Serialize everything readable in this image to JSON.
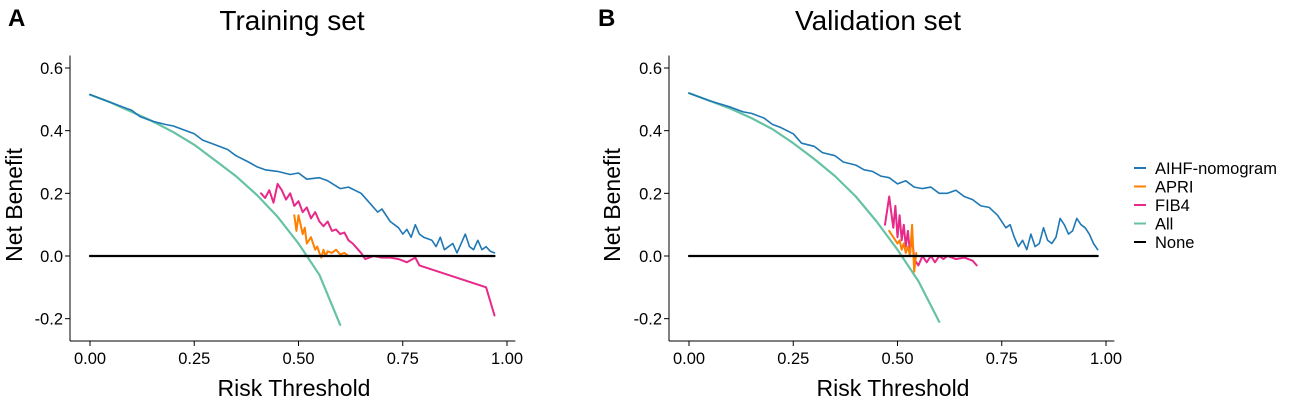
{
  "chart_data": [
    {
      "type": "line",
      "panel_letter": "A",
      "title": "Training set",
      "xlabel": "Risk Threshold",
      "ylabel": "Net Benefit",
      "xlim": [
        -0.04,
        1.02
      ],
      "ylim": [
        -0.26,
        0.64
      ],
      "xticks": [
        0,
        0.25,
        0.5,
        0.75,
        1.0
      ],
      "xtick_labels": [
        "0.00",
        "0.25",
        "0.50",
        "0.75",
        "1.00"
      ],
      "yticks": [
        -0.2,
        0,
        0.2,
        0.4,
        0.6
      ],
      "ytick_labels": [
        "-0.2",
        "0.0",
        "0.2",
        "0.4",
        "0.6"
      ],
      "grid": false,
      "series": [
        {
          "name": "All",
          "color": "#66C2A5",
          "width": 2.2,
          "points": [
            [
              0,
              0.515
            ],
            [
              0.05,
              0.49
            ],
            [
              0.1,
              0.46
            ],
            [
              0.15,
              0.43
            ],
            [
              0.2,
              0.395
            ],
            [
              0.25,
              0.355
            ],
            [
              0.3,
              0.305
            ],
            [
              0.35,
              0.255
            ],
            [
              0.4,
              0.195
            ],
            [
              0.45,
              0.125
            ],
            [
              0.5,
              0.04
            ],
            [
              0.55,
              -0.06
            ],
            [
              0.6,
              -0.22
            ]
          ]
        },
        {
          "name": "AIHF-nomogram",
          "color": "#1F78B4",
          "width": 1.6,
          "points": [
            [
              0,
              0.515
            ],
            [
              0.05,
              0.49
            ],
            [
              0.1,
              0.465
            ],
            [
              0.12,
              0.445
            ],
            [
              0.15,
              0.43
            ],
            [
              0.18,
              0.42
            ],
            [
              0.2,
              0.415
            ],
            [
              0.22,
              0.405
            ],
            [
              0.25,
              0.39
            ],
            [
              0.27,
              0.37
            ],
            [
              0.3,
              0.355
            ],
            [
              0.33,
              0.34
            ],
            [
              0.35,
              0.32
            ],
            [
              0.38,
              0.3
            ],
            [
              0.4,
              0.285
            ],
            [
              0.42,
              0.275
            ],
            [
              0.45,
              0.27
            ],
            [
              0.48,
              0.26
            ],
            [
              0.5,
              0.265
            ],
            [
              0.52,
              0.245
            ],
            [
              0.55,
              0.25
            ],
            [
              0.57,
              0.24
            ],
            [
              0.6,
              0.215
            ],
            [
              0.62,
              0.22
            ],
            [
              0.65,
              0.2
            ],
            [
              0.67,
              0.17
            ],
            [
              0.69,
              0.14
            ],
            [
              0.7,
              0.15
            ],
            [
              0.72,
              0.11
            ],
            [
              0.74,
              0.09
            ],
            [
              0.75,
              0.07
            ],
            [
              0.76,
              0.085
            ],
            [
              0.77,
              0.06
            ],
            [
              0.78,
              0.1
            ],
            [
              0.79,
              0.07
            ],
            [
              0.8,
              0.06
            ],
            [
              0.82,
              0.05
            ],
            [
              0.83,
              0.03
            ],
            [
              0.84,
              0.06
            ],
            [
              0.85,
              0.02
            ],
            [
              0.87,
              0.04
            ],
            [
              0.88,
              0.01
            ],
            [
              0.9,
              0.07
            ],
            [
              0.91,
              0.03
            ],
            [
              0.92,
              0.02
            ],
            [
              0.93,
              0.05
            ],
            [
              0.94,
              0.02
            ],
            [
              0.95,
              0.03
            ],
            [
              0.96,
              0.015
            ],
            [
              0.97,
              0.01
            ]
          ]
        },
        {
          "name": "FIB4",
          "color": "#E7298A",
          "width": 2.0,
          "points": [
            [
              0.41,
              0.2
            ],
            [
              0.42,
              0.185
            ],
            [
              0.43,
              0.21
            ],
            [
              0.44,
              0.17
            ],
            [
              0.45,
              0.23
            ],
            [
              0.46,
              0.21
            ],
            [
              0.47,
              0.18
            ],
            [
              0.48,
              0.2
            ],
            [
              0.49,
              0.16
            ],
            [
              0.5,
              0.175
            ],
            [
              0.51,
              0.14
            ],
            [
              0.52,
              0.155
            ],
            [
              0.53,
              0.12
            ],
            [
              0.54,
              0.14
            ],
            [
              0.55,
              0.11
            ],
            [
              0.56,
              0.095
            ],
            [
              0.57,
              0.11
            ],
            [
              0.58,
              0.08
            ],
            [
              0.59,
              0.085
            ],
            [
              0.6,
              0.07
            ],
            [
              0.61,
              0.075
            ],
            [
              0.62,
              0.05
            ],
            [
              0.63,
              0.04
            ],
            [
              0.64,
              0.025
            ],
            [
              0.65,
              0.01
            ],
            [
              0.66,
              -0.01
            ],
            [
              0.68,
              0.0
            ],
            [
              0.7,
              -0.005
            ],
            [
              0.72,
              -0.005
            ],
            [
              0.74,
              -0.01
            ],
            [
              0.76,
              -0.02
            ],
            [
              0.78,
              -0.005
            ],
            [
              0.79,
              -0.03
            ],
            [
              0.95,
              -0.1
            ],
            [
              0.97,
              -0.19
            ]
          ]
        },
        {
          "name": "APRI",
          "color": "#FF7F00",
          "width": 2.0,
          "points": [
            [
              0.49,
              0.13
            ],
            [
              0.495,
              0.08
            ],
            [
              0.5,
              0.13
            ],
            [
              0.505,
              0.1
            ],
            [
              0.51,
              0.07
            ],
            [
              0.515,
              0.09
            ],
            [
              0.52,
              0.04
            ],
            [
              0.53,
              0.06
            ],
            [
              0.54,
              0.02
            ],
            [
              0.545,
              0.03
            ],
            [
              0.55,
              0.01
            ],
            [
              0.555,
              -0.005
            ],
            [
              0.56,
              0.02
            ],
            [
              0.565,
              0.0
            ],
            [
              0.57,
              0.015
            ],
            [
              0.58,
              0.01
            ],
            [
              0.59,
              0.02
            ],
            [
              0.6,
              0.005
            ],
            [
              0.61,
              0.01
            ],
            [
              0.62,
              0.0
            ]
          ]
        },
        {
          "name": "None",
          "color": "#000000",
          "width": 2.2,
          "points": [
            [
              0,
              0
            ],
            [
              0.97,
              0
            ]
          ]
        }
      ]
    },
    {
      "type": "line",
      "panel_letter": "B",
      "title": "Validation set",
      "xlabel": "Risk Threshold",
      "ylabel": "Net Benefit",
      "xlim": [
        -0.04,
        1.02
      ],
      "ylim": [
        -0.26,
        0.64
      ],
      "xticks": [
        0,
        0.25,
        0.5,
        0.75,
        1.0
      ],
      "xtick_labels": [
        "0.00",
        "0.25",
        "0.50",
        "0.75",
        "1.00"
      ],
      "yticks": [
        -0.2,
        0,
        0.2,
        0.4,
        0.6
      ],
      "ytick_labels": [
        "-0.2",
        "0.0",
        "0.2",
        "0.4",
        "0.6"
      ],
      "grid": false,
      "series": [
        {
          "name": "All",
          "color": "#66C2A5",
          "width": 2.2,
          "points": [
            [
              0,
              0.52
            ],
            [
              0.05,
              0.495
            ],
            [
              0.1,
              0.47
            ],
            [
              0.15,
              0.44
            ],
            [
              0.2,
              0.405
            ],
            [
              0.25,
              0.36
            ],
            [
              0.3,
              0.31
            ],
            [
              0.35,
              0.255
            ],
            [
              0.4,
              0.19
            ],
            [
              0.45,
              0.11
            ],
            [
              0.5,
              0.02
            ],
            [
              0.55,
              -0.08
            ],
            [
              0.6,
              -0.21
            ]
          ]
        },
        {
          "name": "AIHF-nomogram",
          "color": "#1F78B4",
          "width": 1.6,
          "points": [
            [
              0,
              0.52
            ],
            [
              0.05,
              0.495
            ],
            [
              0.1,
              0.475
            ],
            [
              0.13,
              0.46
            ],
            [
              0.15,
              0.455
            ],
            [
              0.18,
              0.44
            ],
            [
              0.2,
              0.42
            ],
            [
              0.22,
              0.41
            ],
            [
              0.25,
              0.39
            ],
            [
              0.27,
              0.36
            ],
            [
              0.3,
              0.35
            ],
            [
              0.32,
              0.33
            ],
            [
              0.35,
              0.32
            ],
            [
              0.37,
              0.3
            ],
            [
              0.4,
              0.29
            ],
            [
              0.42,
              0.275
            ],
            [
              0.44,
              0.27
            ],
            [
              0.46,
              0.255
            ],
            [
              0.48,
              0.25
            ],
            [
              0.5,
              0.23
            ],
            [
              0.52,
              0.24
            ],
            [
              0.54,
              0.22
            ],
            [
              0.56,
              0.215
            ],
            [
              0.58,
              0.22
            ],
            [
              0.6,
              0.2
            ],
            [
              0.62,
              0.2
            ],
            [
              0.64,
              0.21
            ],
            [
              0.66,
              0.19
            ],
            [
              0.68,
              0.18
            ],
            [
              0.7,
              0.16
            ],
            [
              0.72,
              0.155
            ],
            [
              0.74,
              0.13
            ],
            [
              0.76,
              0.09
            ],
            [
              0.77,
              0.1
            ],
            [
              0.78,
              0.06
            ],
            [
              0.79,
              0.03
            ],
            [
              0.8,
              0.05
            ],
            [
              0.81,
              0.02
            ],
            [
              0.82,
              0.07
            ],
            [
              0.83,
              0.03
            ],
            [
              0.84,
              0.04
            ],
            [
              0.85,
              0.09
            ],
            [
              0.86,
              0.05
            ],
            [
              0.87,
              0.04
            ],
            [
              0.88,
              0.06
            ],
            [
              0.89,
              0.12
            ],
            [
              0.9,
              0.1
            ],
            [
              0.91,
              0.07
            ],
            [
              0.92,
              0.08
            ],
            [
              0.93,
              0.12
            ],
            [
              0.94,
              0.1
            ],
            [
              0.95,
              0.09
            ],
            [
              0.96,
              0.07
            ],
            [
              0.97,
              0.04
            ],
            [
              0.98,
              0.02
            ]
          ]
        },
        {
          "name": "FIB4",
          "color": "#E7298A",
          "width": 2.0,
          "points": [
            [
              0.47,
              0.1
            ],
            [
              0.48,
              0.19
            ],
            [
              0.485,
              0.14
            ],
            [
              0.49,
              0.09
            ],
            [
              0.495,
              0.16
            ],
            [
              0.5,
              0.06
            ],
            [
              0.505,
              0.13
            ],
            [
              0.51,
              0.05
            ],
            [
              0.515,
              0.1
            ],
            [
              0.52,
              0.03
            ],
            [
              0.525,
              0.08
            ],
            [
              0.53,
              0.01
            ],
            [
              0.535,
              0.06
            ],
            [
              0.54,
              -0.01
            ],
            [
              0.55,
              -0.03
            ],
            [
              0.56,
              0.0
            ],
            [
              0.57,
              -0.02
            ],
            [
              0.58,
              0.0
            ],
            [
              0.59,
              -0.02
            ],
            [
              0.6,
              0.0
            ],
            [
              0.61,
              -0.01
            ],
            [
              0.62,
              0.0
            ],
            [
              0.64,
              -0.01
            ],
            [
              0.66,
              -0.005
            ],
            [
              0.68,
              -0.015
            ],
            [
              0.69,
              -0.03
            ]
          ]
        },
        {
          "name": "APRI",
          "color": "#FF7F00",
          "width": 2.0,
          "points": [
            [
              0.48,
              0.08
            ],
            [
              0.49,
              0.06
            ],
            [
              0.5,
              0.04
            ],
            [
              0.505,
              0.05
            ],
            [
              0.51,
              0.02
            ],
            [
              0.515,
              0.04
            ],
            [
              0.52,
              0.01
            ],
            [
              0.525,
              0.03
            ],
            [
              0.53,
              0.0
            ],
            [
              0.535,
              0.1
            ],
            [
              0.54,
              -0.05
            ],
            [
              0.545,
              0.01
            ]
          ]
        },
        {
          "name": "None",
          "color": "#000000",
          "width": 2.2,
          "points": [
            [
              0,
              0
            ],
            [
              0.98,
              0
            ]
          ]
        }
      ]
    }
  ],
  "legend": {
    "entries": [
      {
        "label": "AIHF-nomogram",
        "color": "#1F78B4"
      },
      {
        "label": "APRI",
        "color": "#FF7F00"
      },
      {
        "label": "FIB4",
        "color": "#E7298A"
      },
      {
        "label": "All",
        "color": "#66C2A5"
      },
      {
        "label": "None",
        "color": "#000000"
      }
    ]
  }
}
